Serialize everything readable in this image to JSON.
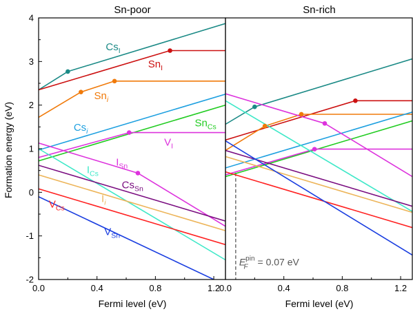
{
  "chart_data": [
    {
      "type": "line",
      "title": "Sn-poor",
      "xlabel": "Fermi level (eV)",
      "ylabel": "Formation energy (eV)",
      "xlim": [
        0,
        1.28
      ],
      "ylim": [
        -2,
        4
      ],
      "xticks": [
        "0.0",
        "0.4",
        "0.8",
        "1.2"
      ],
      "yticks": [
        "-2",
        "-1",
        "0",
        "1",
        "2",
        "3",
        "4"
      ],
      "grid": false,
      "series": [
        {
          "name": "Cs",
          "sub": "I",
          "italic_sub": false,
          "color": "#1b8a86",
          "points": [
            [
              0,
              2.35
            ],
            [
              0.2,
              2.77
            ],
            [
              1.28,
              3.87
            ]
          ],
          "markers": [
            [
              0.2,
              2.77
            ]
          ],
          "label_at": [
            0.46,
            3.26
          ]
        },
        {
          "name": "Sn",
          "sub": "I",
          "italic_sub": false,
          "color": "#cc1111",
          "points": [
            [
              0,
              2.35
            ],
            [
              0.9,
              3.25
            ],
            [
              1.28,
              3.25
            ]
          ],
          "markers": [
            [
              0.9,
              3.25
            ]
          ],
          "label_at": [
            0.75,
            2.86
          ]
        },
        {
          "name": "Sn",
          "sub": "i",
          "italic_sub": true,
          "color": "#f07a0a",
          "points": [
            [
              0,
              1.72
            ],
            [
              0.29,
              2.3
            ],
            [
              0.52,
              2.55
            ],
            [
              1.28,
              2.55
            ]
          ],
          "markers": [
            [
              0.29,
              2.3
            ],
            [
              0.52,
              2.55
            ]
          ],
          "label_at": [
            0.38,
            2.14
          ]
        },
        {
          "name": "Cs",
          "sub": "i",
          "italic_sub": true,
          "color": "#1ea0e0",
          "points": [
            [
              0,
              0.97
            ],
            [
              1.28,
              2.25
            ]
          ],
          "markers": [],
          "label_at": [
            0.24,
            1.41
          ]
        },
        {
          "name": "Sn",
          "sub": "Cs",
          "italic_sub": false,
          "color": "#22cc22",
          "points": [
            [
              0,
              0.72
            ],
            [
              1.28,
              2.0
            ]
          ],
          "markers": [],
          "label_at": [
            1.07,
            1.51
          ]
        },
        {
          "name": "V",
          "sub": "I",
          "italic_sub": false,
          "color": "#dd33dd",
          "points": [
            [
              0,
              0.8
            ],
            [
              0.62,
              1.37
            ],
            [
              1.28,
              1.37
            ]
          ],
          "markers": [
            [
              0.62,
              1.37
            ]
          ],
          "label_at": [
            0.86,
            1.07
          ]
        },
        {
          "name": "I",
          "sub": "Sn",
          "italic_sub": false,
          "color": "#dd33dd",
          "points": [
            [
              0,
              1.13
            ],
            [
              0.68,
              0.44
            ],
            [
              1.28,
              -0.78
            ]
          ],
          "markers": [
            [
              0.68,
              0.44
            ]
          ],
          "label_at": [
            0.53,
            0.61
          ]
        },
        {
          "name": "I",
          "sub": "Cs",
          "italic_sub": false,
          "color": "#3ee8c8",
          "points": [
            [
              0,
              1.0
            ],
            [
              1.28,
              -1.55
            ]
          ],
          "markers": [],
          "label_at": [
            0.33,
            0.44
          ]
        },
        {
          "name": "Cs",
          "sub": "Sn",
          "italic_sub": false,
          "color": "#7a0d80",
          "points": [
            [
              0,
              0.62
            ],
            [
              1.28,
              -0.66
            ]
          ],
          "markers": [],
          "label_at": [
            0.57,
            0.09
          ]
        },
        {
          "name": "I",
          "sub": "i",
          "italic_sub": true,
          "color": "#edb55a",
          "points": [
            [
              0,
              0.4
            ],
            [
              1.28,
              -0.88
            ]
          ],
          "markers": [],
          "label_at": [
            0.43,
            -0.22
          ]
        },
        {
          "name": "V",
          "sub": "Cs",
          "italic_sub": false,
          "color": "#ff2222",
          "points": [
            [
              0,
              0.08
            ],
            [
              1.28,
              -1.2
            ]
          ],
          "markers": [],
          "label_at": [
            0.07,
            -0.35
          ]
        },
        {
          "name": "V",
          "sub": "Sn",
          "italic_sub": false,
          "color": "#1a3ee0",
          "points": [
            [
              0,
              -0.1
            ],
            [
              1.2,
              -2.0
            ]
          ],
          "markers": [],
          "label_at": [
            0.45,
            -0.98
          ]
        }
      ]
    },
    {
      "type": "line",
      "title": "Sn-rich",
      "xlabel": "Fermi level (eV)",
      "ylabel": "",
      "xlim": [
        0,
        1.28
      ],
      "ylim": [
        -2,
        4
      ],
      "xticks": [
        "0.0",
        "0.4",
        "0.8",
        "1.2"
      ],
      "yticks": [],
      "grid": false,
      "annotation": {
        "text_main": "E",
        "text_sub": "F",
        "text_sup": "pin",
        "text_rest": " = 0.07 eV",
        "x": 0.07
      },
      "series": [
        {
          "name": "Cs",
          "sub": "I",
          "italic_sub": false,
          "color": "#1b8a86",
          "points": [
            [
              0,
              1.56
            ],
            [
              0.2,
              1.96
            ],
            [
              1.28,
              3.06
            ]
          ],
          "markers": [
            [
              0.2,
              1.96
            ]
          ]
        },
        {
          "name": "Sn",
          "sub": "I",
          "italic_sub": false,
          "color": "#cc1111",
          "points": [
            [
              0,
              1.2
            ],
            [
              0.89,
              2.1
            ],
            [
              1.28,
              2.1
            ]
          ],
          "markers": [
            [
              0.89,
              2.1
            ]
          ]
        },
        {
          "name": "Sn",
          "sub": "i",
          "italic_sub": true,
          "color": "#f07a0a",
          "points": [
            [
              0,
              0.96
            ],
            [
              0.27,
              1.52
            ],
            [
              0.52,
              1.79
            ],
            [
              1.28,
              1.79
            ]
          ],
          "markers": [
            [
              0.27,
              1.52
            ],
            [
              0.52,
              1.79
            ]
          ]
        },
        {
          "name": "Cs",
          "sub": "i",
          "italic_sub": true,
          "color": "#1ea0e0",
          "points": [
            [
              0,
              0.56
            ],
            [
              1.28,
              1.84
            ]
          ],
          "markers": []
        },
        {
          "name": "Sn",
          "sub": "Cs",
          "italic_sub": false,
          "color": "#22cc22",
          "points": [
            [
              0,
              0.36
            ],
            [
              1.28,
              1.64
            ]
          ],
          "markers": []
        },
        {
          "name": "V",
          "sub": "I",
          "italic_sub": false,
          "color": "#dd33dd",
          "points": [
            [
              0,
              0.4
            ],
            [
              0.61,
              0.99
            ],
            [
              1.28,
              0.99
            ]
          ],
          "markers": [
            [
              0.61,
              0.99
            ]
          ]
        },
        {
          "name": "I",
          "sub": "Sn",
          "italic_sub": false,
          "color": "#dd33dd",
          "points": [
            [
              0,
              2.26
            ],
            [
              0.68,
              1.58
            ],
            [
              1.28,
              0.36
            ]
          ],
          "markers": [
            [
              0.68,
              1.58
            ]
          ]
        },
        {
          "name": "I",
          "sub": "Cs",
          "italic_sub": false,
          "color": "#3ee8c8",
          "points": [
            [
              0,
              2.1
            ],
            [
              1.28,
              -0.44
            ]
          ],
          "markers": []
        },
        {
          "name": "Cs",
          "sub": "Sn",
          "italic_sub": false,
          "color": "#7a0d80",
          "points": [
            [
              0,
              0.96
            ],
            [
              1.28,
              -0.32
            ]
          ],
          "markers": []
        },
        {
          "name": "I",
          "sub": "i",
          "italic_sub": true,
          "color": "#edb55a",
          "points": [
            [
              0,
              0.82
            ],
            [
              1.28,
              -0.46
            ]
          ],
          "markers": []
        },
        {
          "name": "V",
          "sub": "Cs",
          "italic_sub": false,
          "color": "#ff2222",
          "points": [
            [
              0,
              0.47
            ],
            [
              1.28,
              -0.81
            ]
          ],
          "markers": []
        },
        {
          "name": "V",
          "sub": "Sn",
          "italic_sub": false,
          "color": "#1a3ee0",
          "points": [
            [
              0,
              1.18
            ],
            [
              1.28,
              -1.44
            ]
          ],
          "markers": []
        }
      ]
    }
  ]
}
